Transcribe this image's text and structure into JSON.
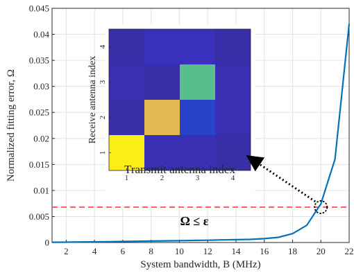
{
  "chart_data": [
    {
      "type": "line",
      "xlabel": "System bandwidth, B (MHz)",
      "ylabel": "Normalized fitting error, Ω",
      "xlim": [
        1,
        22
      ],
      "ylim": [
        0,
        0.045
      ],
      "x_ticks": [
        "2",
        "4",
        "6",
        "8",
        "10",
        "12",
        "14",
        "16",
        "18",
        "20",
        "22"
      ],
      "y_ticks": [
        "0",
        "0.005",
        "0.01",
        "0.015",
        "0.02",
        "0.025",
        "0.03",
        "0.035",
        "0.04",
        "0.045"
      ],
      "grid": true,
      "series": [
        {
          "color": "#0072BD",
          "x": [
            1,
            2,
            3,
            4,
            5,
            6,
            7,
            8,
            9,
            10,
            11,
            12,
            13,
            14,
            15,
            16,
            17,
            18,
            19,
            20,
            21,
            22
          ],
          "y": [
            5e-05,
            7e-05,
            0.0001,
            0.00013,
            0.00016,
            0.0002,
            0.00024,
            0.00028,
            0.00032,
            0.00036,
            0.0004,
            0.00044,
            0.0005,
            0.00055,
            0.0006,
            0.00075,
            0.001,
            0.0017,
            0.0033,
            0.0074,
            0.016,
            0.042
          ]
        }
      ],
      "threshold": {
        "y": 0.0068,
        "color": "#ff3b3b",
        "style": "dashed",
        "label": "Ω ≤ ε"
      }
    },
    {
      "type": "heatmap",
      "xlabel": "Transmit antenna index",
      "ylabel": "Receive antenna index",
      "x_ticks": [
        "1",
        "2",
        "3",
        "4"
      ],
      "y_ticks": [
        "1",
        "2",
        "3",
        "4"
      ],
      "colormap": "parula",
      "value_range": [
        0,
        1
      ],
      "cells": [
        [
          0.06,
          0.1,
          0.1,
          0.06
        ],
        [
          0.08,
          0.06,
          0.6,
          0.08
        ],
        [
          0.06,
          0.8,
          0.14,
          0.08
        ],
        [
          0.97,
          0.08,
          0.08,
          0.06
        ]
      ]
    }
  ]
}
